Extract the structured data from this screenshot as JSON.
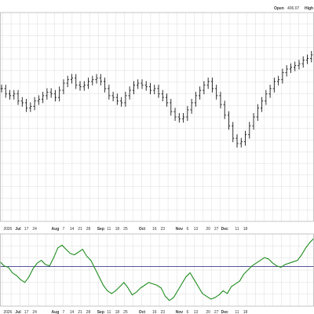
{
  "colors": {
    "background": "#ffffff",
    "grid": "#dcdcdc",
    "panel_border": "#b9b9b9",
    "price_bars": "#1a1a1a",
    "indicator_line": "#1e8c1e",
    "reference_line": "#3c3c8c",
    "axis_text": "#333333"
  },
  "header": {
    "open_label": "Open",
    "open_value": "406.07",
    "high_label": "High"
  },
  "chart_data": {
    "type": "line",
    "title": "",
    "price_panel": {
      "kind": "ohlc-bars",
      "y_axis_visible": false,
      "grid": true,
      "y_range_relative": [
        0,
        100
      ],
      "series": [
        {
          "name": "",
          "close": [
            66,
            63,
            62,
            63,
            59,
            58,
            55,
            56,
            59,
            60,
            62,
            64,
            63,
            61,
            65,
            69,
            71,
            72,
            68,
            67,
            68,
            70,
            71,
            72,
            70,
            66,
            62,
            61,
            59,
            58,
            62,
            65,
            68,
            69,
            68,
            67,
            65,
            66,
            63,
            61,
            58,
            53,
            50,
            49,
            50,
            54,
            58,
            62,
            65,
            68,
            70,
            66,
            62,
            57,
            51,
            45,
            38,
            35,
            36,
            40,
            45,
            50,
            55,
            59,
            63,
            66,
            70,
            71,
            75,
            77,
            78,
            79,
            80,
            82,
            83,
            85,
            87
          ]
        }
      ]
    },
    "indicator_panel": {
      "kind": "oscillator",
      "y_axis_visible": false,
      "grid": true,
      "reference_level": 55,
      "y_range_relative": [
        0,
        100
      ],
      "series": [
        {
          "name": "",
          "values": [
            62,
            56,
            54,
            46,
            42,
            36,
            32,
            40,
            52,
            60,
            64,
            58,
            56,
            68,
            82,
            86,
            80,
            74,
            72,
            76,
            80,
            70,
            64,
            52,
            40,
            28,
            20,
            16,
            20,
            26,
            32,
            24,
            14,
            18,
            24,
            28,
            32,
            30,
            28,
            24,
            12,
            6,
            10,
            20,
            30,
            40,
            46,
            36,
            26,
            16,
            12,
            8,
            10,
            14,
            20,
            16,
            26,
            30,
            34,
            44,
            50,
            56,
            60,
            64,
            68,
            66,
            60,
            56,
            54,
            58,
            60,
            62,
            64,
            72,
            82,
            90,
            96
          ]
        }
      ]
    },
    "x_axis": {
      "months": [
        {
          "label": "Jul",
          "index": 4
        },
        {
          "label": "Aug",
          "index": 13
        },
        {
          "label": "Sep",
          "index": 24
        },
        {
          "label": "Oct",
          "index": 34
        },
        {
          "label": "Nov",
          "index": 43
        },
        {
          "label": "Dec",
          "index": 54
        }
      ],
      "days": [
        "20",
        "26",
        "17",
        "24",
        "7",
        "14",
        "21",
        "28",
        "11",
        "18",
        "25",
        "16",
        "23",
        "6",
        "13",
        "20",
        "27",
        "11",
        "18"
      ]
    }
  }
}
